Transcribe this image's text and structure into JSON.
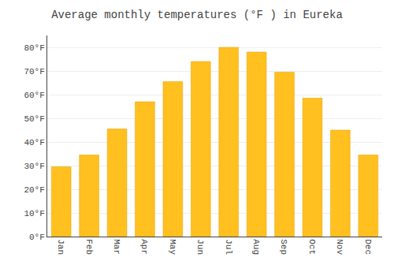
{
  "chart_data": {
    "type": "bar",
    "title": "Average monthly temperatures (°F ) in Eureka",
    "categories": [
      "Jan",
      "Feb",
      "Mar",
      "Apr",
      "May",
      "Jun",
      "Jul",
      "Aug",
      "Sep",
      "Oct",
      "Nov",
      "Dec"
    ],
    "values": [
      29.5,
      34.5,
      45.5,
      57,
      65.5,
      74,
      80,
      78,
      69.5,
      58.5,
      45,
      34.5
    ],
    "color": "#FFC020",
    "ylim": [
      0,
      85
    ],
    "yticks": [
      {
        "value": 0,
        "label": "0°F"
      },
      {
        "value": 10,
        "label": "10°F"
      },
      {
        "value": 20,
        "label": "20°F"
      },
      {
        "value": 30,
        "label": "30°F"
      },
      {
        "value": 40,
        "label": "40°F"
      },
      {
        "value": 50,
        "label": "50°F"
      },
      {
        "value": 60,
        "label": "60°F"
      },
      {
        "value": 70,
        "label": "70°F"
      },
      {
        "value": 80,
        "label": "80°F"
      }
    ],
    "grid": true
  }
}
